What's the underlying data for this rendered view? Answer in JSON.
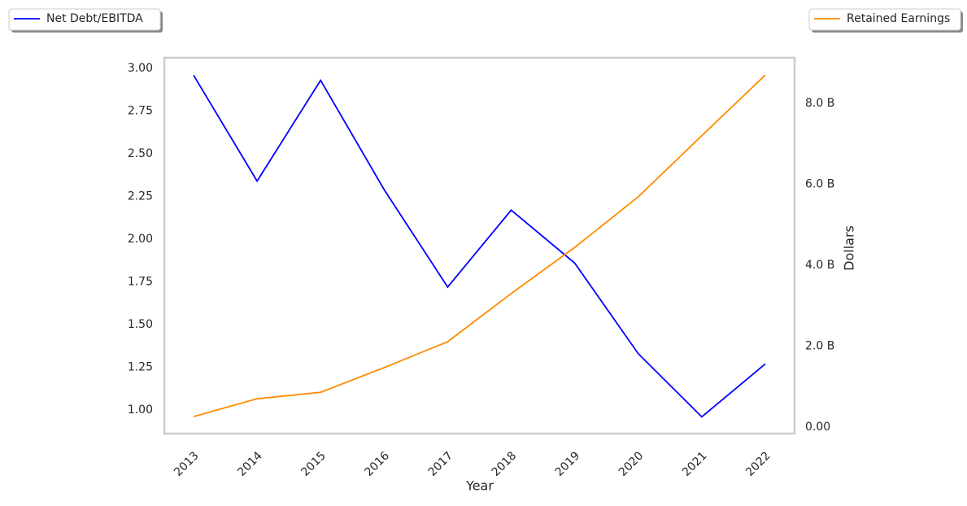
{
  "chart_data": {
    "type": "line",
    "x_label": "Year",
    "y2_label": "Dollars",
    "categories": [
      "2013",
      "2014",
      "2015",
      "2016",
      "2017",
      "2018",
      "2019",
      "2020",
      "2021",
      "2022"
    ],
    "ylim": [
      0.862,
      3.062
    ],
    "yticks": [
      {
        "value": 1,
        "label": "1.00"
      },
      1.25,
      {
        "value": 1.5,
        "label": "1.50"
      },
      1.75,
      {
        "value": 2,
        "label": "2.00"
      },
      2.25,
      {
        "value": 2.5,
        "label": "2.50"
      },
      2.75,
      {
        "value": 3,
        "label": "3.00"
      }
    ],
    "y2lim": [
      -161000000,
      9126000000
    ],
    "y2ticks": [
      {
        "value": 0,
        "label": "0.00"
      },
      {
        "value": 2000000000,
        "label": "2.0 B"
      },
      {
        "value": 4000000000,
        "label": "4.0 B"
      },
      {
        "value": 6000000000,
        "label": "6.0 B"
      },
      {
        "value": 8000000000,
        "label": "8.0 B"
      }
    ],
    "series": [
      {
        "name": "Net Debt/EBITDA",
        "color": "#0000ff",
        "legend": "upper left",
        "values": [
          2.96,
          2.34,
          2.93,
          2.29,
          1.72,
          2.17,
          1.86,
          1.33,
          0.96,
          1.27
        ]
      },
      {
        "name": "Retained Earnings",
        "color": "#ff8c00",
        "axis": "y2",
        "legend": "upper right",
        "values": [
          260000000,
          700000000,
          860000000,
          1470000000,
          2110000000,
          3300000000,
          4440000000,
          5690000000,
          7200000000,
          8700000000
        ]
      }
    ]
  }
}
